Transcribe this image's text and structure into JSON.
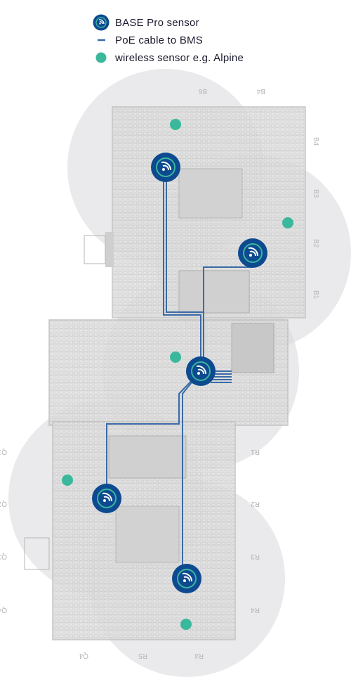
{
  "legend": {
    "items": [
      {
        "key": "base_pro",
        "label": "BASE Pro sensor",
        "icon": "base-pro-sensor-icon"
      },
      {
        "key": "poe",
        "label": "PoE cable to BMS",
        "icon": "poe-cable-icon"
      },
      {
        "key": "wireless",
        "label": "wireless sensor e.g. Alpine",
        "icon": "wireless-sensor-icon"
      }
    ]
  },
  "colors": {
    "sensor_dark": "#0d4a8f",
    "sensor_light": "#3ab5a0",
    "cable": "#3a6aa8",
    "wireless": "#3ab89b",
    "coverage": "#d9d9dc",
    "floor": "#d6d6d6",
    "floor_dark": "#bdbdbd"
  },
  "zones": {
    "top": [
      "B6",
      "B4",
      "B4",
      "B3",
      "B2",
      "B1"
    ],
    "bottom": [
      "Q1",
      "Q2",
      "Q3",
      "Q4",
      "R1",
      "R2",
      "R3",
      "R4",
      "Q4",
      "R5",
      "R4"
    ]
  }
}
